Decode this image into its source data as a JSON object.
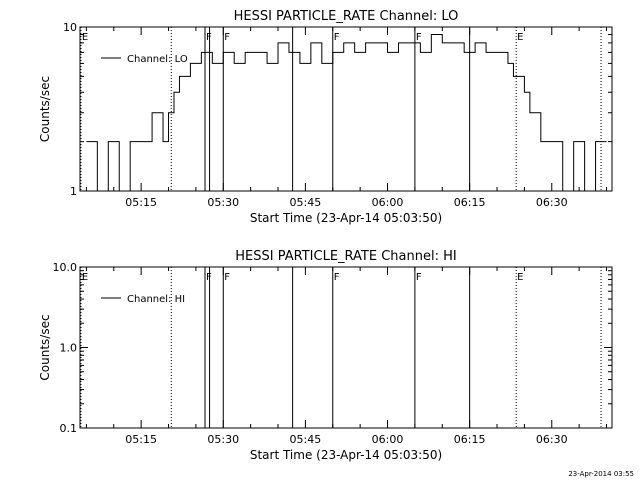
{
  "timestamp": "23-Apr-2014 03:55",
  "chart_data": [
    {
      "type": "line",
      "title": "HESSI PARTICLE_RATE Channel: LO",
      "ylabel": "Counts/sec",
      "xlabel": "Start Time (23-Apr-14 05:03:50)",
      "yscale": "log",
      "ylim": [
        1,
        10
      ],
      "xlim": [
        "05:03:50",
        "06:41:00"
      ],
      "ytick_labels": [
        "10",
        "1"
      ],
      "xtick_labels": [
        "05:15",
        "05:30",
        "05:45",
        "06:00",
        "06:15",
        "06:30"
      ],
      "legend_label": "Channel: LO",
      "legend_position": "top-left",
      "markers": [
        {
          "time": "05:04:00",
          "label": "E",
          "style": "dotted"
        },
        {
          "time": "05:20:30",
          "label": "",
          "style": "dotted"
        },
        {
          "time": "05:26:40",
          "label": "F",
          "style": "solid"
        },
        {
          "time": "05:27:30",
          "label": "",
          "style": "solid"
        },
        {
          "time": "05:30:00",
          "label": "F",
          "style": "solid"
        },
        {
          "time": "05:42:40",
          "label": "",
          "style": "solid"
        },
        {
          "time": "05:50:00",
          "label": "F",
          "style": "solid"
        },
        {
          "time": "06:05:00",
          "label": "F",
          "style": "solid"
        },
        {
          "time": "06:15:00",
          "label": "",
          "style": "solid"
        },
        {
          "time": "06:23:30",
          "label": "E",
          "style": "dotted"
        },
        {
          "time": "06:39:00",
          "label": "",
          "style": "dotted"
        }
      ],
      "series": [
        {
          "name": "Channel: LO",
          "x": [
            "05:05",
            "05:07",
            "05:09",
            "05:11",
            "05:13",
            "05:14",
            "05:15",
            "05:16",
            "05:17",
            "05:18",
            "05:19",
            "05:20",
            "05:21",
            "05:22",
            "05:24",
            "05:26",
            "05:28",
            "05:30",
            "05:32",
            "05:34",
            "05:36",
            "05:38",
            "05:40",
            "05:42",
            "05:44",
            "05:46",
            "05:48",
            "05:50",
            "05:52",
            "05:54",
            "05:56",
            "05:58",
            "06:00",
            "06:02",
            "06:04",
            "06:06",
            "06:08",
            "06:10",
            "06:12",
            "06:14",
            "06:16",
            "06:18",
            "06:20",
            "06:22",
            "06:23",
            "06:24",
            "06:25",
            "06:26",
            "06:27",
            "06:28",
            "06:29",
            "06:30",
            "06:32",
            "06:34",
            "06:36",
            "06:38",
            "06:40"
          ],
          "y": [
            2,
            1,
            2,
            1,
            2,
            2,
            2,
            2,
            3,
            3,
            2,
            3,
            4,
            5,
            6,
            7,
            6,
            7,
            6,
            7,
            7,
            6,
            8,
            7,
            6,
            8,
            6,
            7,
            8,
            7,
            8,
            8,
            7,
            8,
            8,
            7,
            9,
            8,
            8,
            7,
            8,
            7,
            7,
            6,
            5,
            5,
            4,
            3,
            3,
            2,
            2,
            2,
            1,
            2,
            1,
            2,
            2
          ]
        }
      ]
    },
    {
      "type": "line",
      "title": "HESSI PARTICLE_RATE Channel: HI",
      "ylabel": "Counts/sec",
      "xlabel": "Start Time (23-Apr-14 05:03:50)",
      "yscale": "log",
      "ylim": [
        0.1,
        10
      ],
      "xlim": [
        "05:03:50",
        "06:41:00"
      ],
      "ytick_labels": [
        "10.0",
        "1.0",
        "0.1"
      ],
      "xtick_labels": [
        "05:15",
        "05:30",
        "05:45",
        "06:00",
        "06:15",
        "06:30"
      ],
      "legend_label": "Channel: HI",
      "legend_position": "top-left",
      "markers": [
        {
          "time": "05:04:00",
          "label": "E",
          "style": "dotted"
        },
        {
          "time": "05:20:30",
          "label": "",
          "style": "dotted"
        },
        {
          "time": "05:26:40",
          "label": "F",
          "style": "solid"
        },
        {
          "time": "05:27:30",
          "label": "",
          "style": "solid"
        },
        {
          "time": "05:30:00",
          "label": "F",
          "style": "solid"
        },
        {
          "time": "05:42:40",
          "label": "",
          "style": "solid"
        },
        {
          "time": "05:50:00",
          "label": "F",
          "style": "solid"
        },
        {
          "time": "06:05:00",
          "label": "F",
          "style": "solid"
        },
        {
          "time": "06:15:00",
          "label": "",
          "style": "solid"
        },
        {
          "time": "06:23:30",
          "label": "E",
          "style": "dotted"
        },
        {
          "time": "06:39:00",
          "label": "",
          "style": "dotted"
        }
      ],
      "series": [
        {
          "name": "Channel: HI",
          "x": [],
          "y": []
        }
      ]
    }
  ]
}
